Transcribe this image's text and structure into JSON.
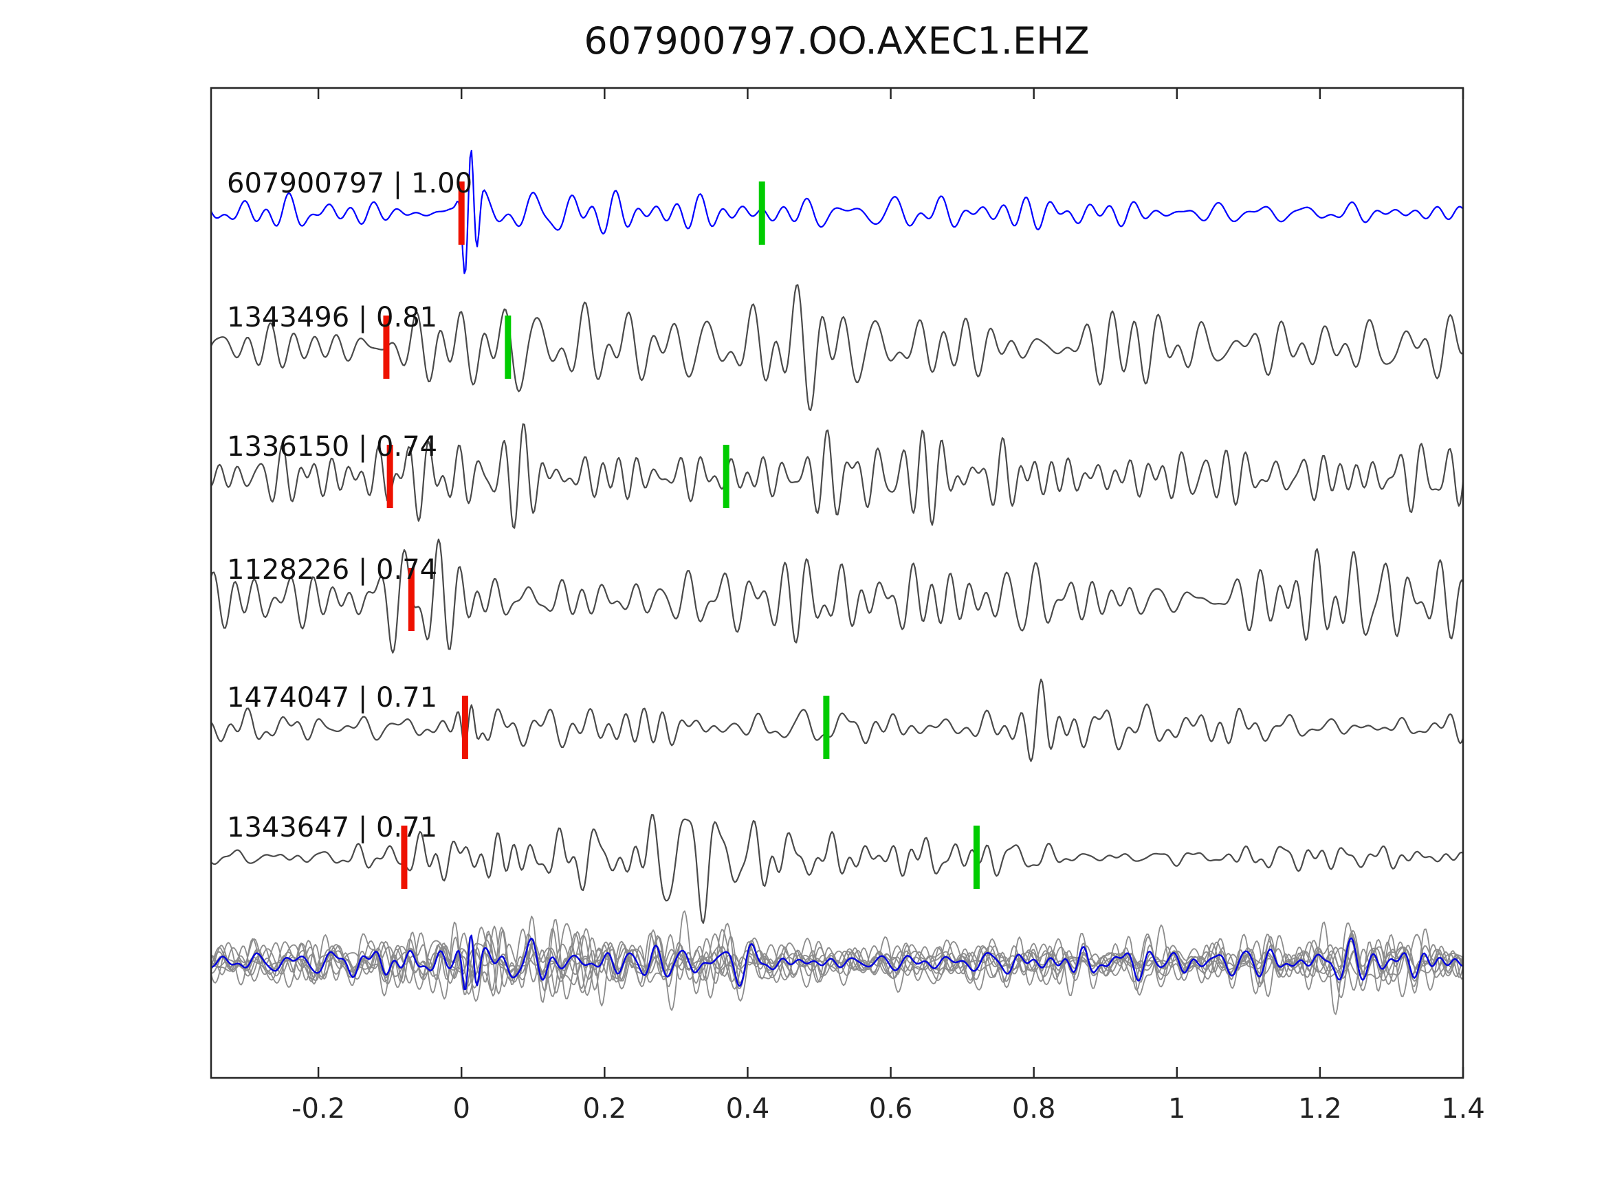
{
  "title": "607900797.OO.AXEC1.EHZ",
  "chart_data": {
    "type": "line",
    "title": "607900797.OO.AXEC1.EHZ",
    "xlabel": "",
    "ylabel": "",
    "xlim": [
      -0.35,
      1.4
    ],
    "grid": false,
    "legend": false,
    "x_ticks": [
      {
        "value": -0.2,
        "label": "-0.2"
      },
      {
        "value": 0,
        "label": "0"
      },
      {
        "value": 0.2,
        "label": "0.2"
      },
      {
        "value": 0.4,
        "label": "0.4"
      },
      {
        "value": 0.6,
        "label": "0.6"
      },
      {
        "value": 0.8,
        "label": "0.8"
      },
      {
        "value": 1,
        "label": "1"
      },
      {
        "value": 1.2,
        "label": "1.2"
      },
      {
        "value": 1.4,
        "label": "1.4"
      }
    ],
    "traces": [
      {
        "id": "607900797",
        "label": "607900797 | 1.00",
        "correlation": 1.0,
        "role": "template",
        "pick_red": 0.0,
        "pick_green": 0.42,
        "seed": 101,
        "envelope": [
          [
            -0.35,
            18
          ],
          [
            -0.1,
            20
          ],
          [
            -0.02,
            20
          ],
          [
            0.03,
            35
          ],
          [
            0.1,
            50
          ],
          [
            0.2,
            48
          ],
          [
            0.3,
            35
          ],
          [
            0.45,
            28
          ],
          [
            0.6,
            22
          ],
          [
            0.8,
            20
          ],
          [
            1.0,
            18
          ],
          [
            1.2,
            16
          ],
          [
            1.4,
            18
          ]
        ],
        "spikes": [
          {
            "x": 0.012,
            "amp": 115,
            "w": 0.012
          }
        ]
      },
      {
        "id": "1343496",
        "label": "1343496 | 0.81",
        "correlation": 0.81,
        "role": "detection",
        "pick_red": -0.105,
        "pick_green": 0.065,
        "seed": 202,
        "envelope": [
          [
            -0.35,
            42
          ],
          [
            -0.2,
            58
          ],
          [
            -0.08,
            68
          ],
          [
            0.05,
            62
          ],
          [
            0.2,
            60
          ],
          [
            0.4,
            64
          ],
          [
            0.6,
            58
          ],
          [
            0.8,
            52
          ],
          [
            1.0,
            50
          ],
          [
            1.2,
            56
          ],
          [
            1.4,
            58
          ]
        ],
        "spikes": []
      },
      {
        "id": "1336150",
        "label": "1336150 | 0.74",
        "correlation": 0.74,
        "role": "detection",
        "pick_red": -0.1,
        "pick_green": 0.37,
        "seed": 303,
        "envelope": [
          [
            -0.35,
            22
          ],
          [
            -0.25,
            40
          ],
          [
            -0.1,
            55
          ],
          [
            0.05,
            50
          ],
          [
            0.25,
            54
          ],
          [
            0.45,
            58
          ],
          [
            0.65,
            52
          ],
          [
            0.85,
            50
          ],
          [
            1.05,
            48
          ],
          [
            1.25,
            56
          ],
          [
            1.4,
            50
          ]
        ],
        "spikes": []
      },
      {
        "id": "1128226",
        "label": "1128226 | 0.74",
        "correlation": 0.74,
        "role": "detection",
        "pick_red": -0.07,
        "pick_green": null,
        "seed": 404,
        "envelope": [
          [
            -0.35,
            40
          ],
          [
            -0.2,
            52
          ],
          [
            -0.05,
            62
          ],
          [
            0.15,
            50
          ],
          [
            0.35,
            56
          ],
          [
            0.55,
            50
          ],
          [
            0.75,
            54
          ],
          [
            0.95,
            50
          ],
          [
            1.15,
            52
          ],
          [
            1.3,
            60
          ],
          [
            1.4,
            48
          ]
        ],
        "spikes": []
      },
      {
        "id": "1474047",
        "label": "1474047 | 0.71",
        "correlation": 0.71,
        "role": "detection",
        "pick_red": 0.005,
        "pick_green": 0.51,
        "seed": 505,
        "envelope": [
          [
            -0.35,
            22
          ],
          [
            -0.15,
            26
          ],
          [
            0.0,
            30
          ],
          [
            0.15,
            34
          ],
          [
            0.35,
            30
          ],
          [
            0.55,
            26
          ],
          [
            0.7,
            28
          ],
          [
            0.8,
            40
          ],
          [
            0.9,
            32
          ],
          [
            1.1,
            26
          ],
          [
            1.4,
            28
          ]
        ],
        "spikes": [
          {
            "x": 0.012,
            "amp": 55,
            "w": 0.014
          },
          {
            "x": 0.81,
            "amp": 70,
            "w": 0.022
          }
        ]
      },
      {
        "id": "1343647",
        "label": "1343647 | 0.71",
        "correlation": 0.71,
        "role": "detection",
        "pick_red": -0.08,
        "pick_green": 0.72,
        "seed": 606,
        "envelope": [
          [
            -0.35,
            10
          ],
          [
            -0.2,
            16
          ],
          [
            -0.08,
            24
          ],
          [
            0.02,
            40
          ],
          [
            0.12,
            62
          ],
          [
            0.22,
            78
          ],
          [
            0.32,
            72
          ],
          [
            0.42,
            60
          ],
          [
            0.52,
            48
          ],
          [
            0.62,
            34
          ],
          [
            0.75,
            22
          ],
          [
            0.9,
            14
          ],
          [
            1.05,
            12
          ],
          [
            1.2,
            20
          ],
          [
            1.3,
            26
          ],
          [
            1.4,
            14
          ]
        ],
        "spikes": []
      }
    ],
    "overlay": {
      "n_traces": 9,
      "seed": 900,
      "envelope": [
        [
          -0.35,
          26
        ],
        [
          -0.18,
          34
        ],
        [
          -0.05,
          40
        ],
        [
          0.05,
          48
        ],
        [
          0.18,
          50
        ],
        [
          0.32,
          42
        ],
        [
          0.5,
          34
        ],
        [
          0.7,
          30
        ],
        [
          0.9,
          32
        ],
        [
          1.1,
          28
        ],
        [
          1.28,
          40
        ],
        [
          1.4,
          32
        ]
      ],
      "mean_scale": 1.7,
      "mean_spike": {
        "x": 0.012,
        "amp": 55,
        "w": 0.012
      }
    },
    "colors": {
      "template": "#0000ff",
      "detection": "#4a4a4a",
      "overlay_grey": "#8c8c8c",
      "overlay_mean": "#0000dd",
      "pick_red": "#ee1100",
      "pick_green": "#00cc00",
      "axis": "#262626",
      "text": "#111111"
    }
  }
}
